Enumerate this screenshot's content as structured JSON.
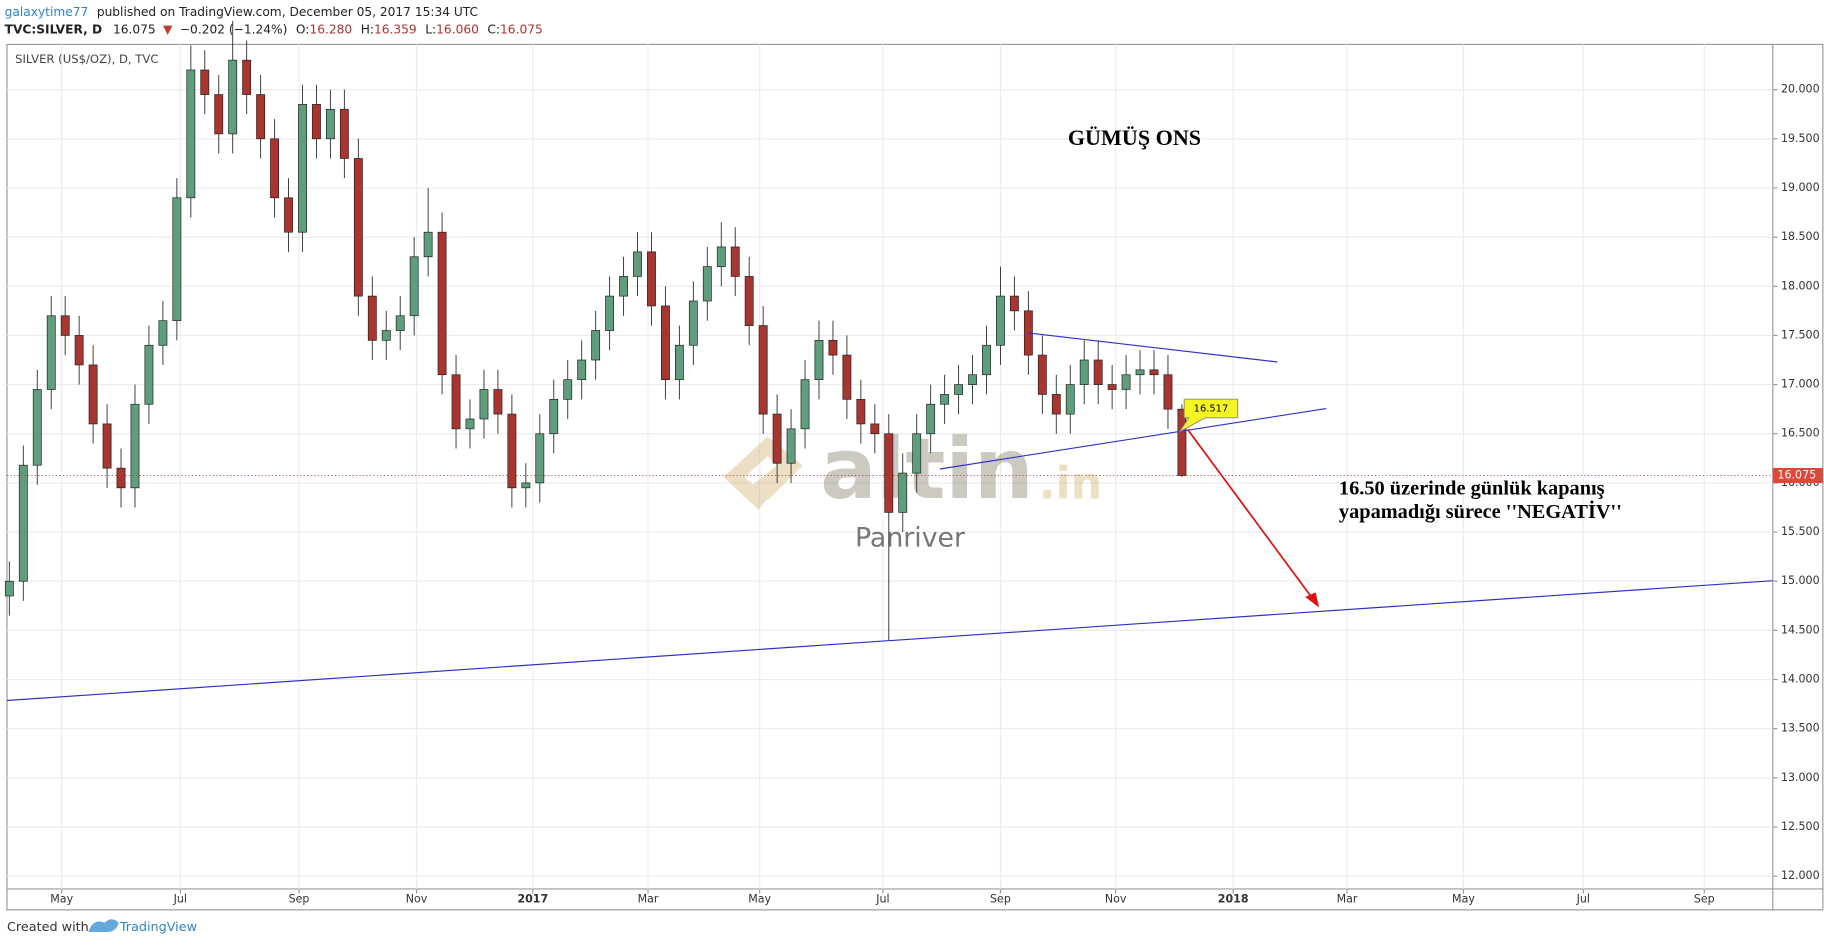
{
  "header": {
    "author": "galaxytime77",
    "published": "published on TradingView.com, December 05, 2017 15:34 UTC",
    "symbol": "TVC:SILVER, D",
    "last": "16.075",
    "arrow": "▼",
    "change": "−0.202 (−1.24%)",
    "o_label": "O:",
    "o": "16.280",
    "h_label": "H:",
    "h": "16.359",
    "l_label": "L:",
    "l": "16.060",
    "c_label": "C:",
    "c": "16.075"
  },
  "chart_data": {
    "type": "candlestick",
    "title": "GÜMÜŞ ONS",
    "subtitle": "SILVER (US$/OZ), D, TVC",
    "annotations": [
      "16.50 üzerinde günlük kapanış",
      "yapamadığı sürece ''NEGATİV''"
    ],
    "price_label": "16.517",
    "watermark": [
      "altin",
      ".in",
      "Panriver"
    ],
    "up_color": "#5f9e7c",
    "down_color": "#a8352f",
    "grid": true,
    "categories": [
      null,
      null,
      null,
      null,
      null,
      null,
      null,
      null,
      null,
      null,
      null,
      null,
      null,
      null,
      null,
      null,
      null,
      null,
      null,
      null,
      null,
      null,
      null,
      null,
      null,
      null,
      null,
      null,
      null,
      null,
      null,
      null,
      null,
      null,
      null,
      null,
      null,
      null,
      null,
      null,
      null,
      null,
      null,
      null,
      null,
      null,
      null,
      null,
      null,
      null,
      null,
      null,
      null,
      null,
      null,
      null,
      null,
      null,
      null,
      null,
      null,
      null,
      null,
      null,
      null,
      null,
      null,
      null,
      null,
      null,
      null,
      null,
      null,
      null,
      null,
      null,
      null,
      null,
      null,
      null,
      null,
      null,
      null,
      null,
      null
    ],
    "open": [
      14.85,
      15.0,
      16.18,
      16.95,
      17.7,
      17.5,
      17.2,
      16.6,
      16.15,
      15.95,
      16.8,
      17.4,
      17.65,
      18.9,
      20.2,
      19.95,
      19.55,
      20.3,
      19.95,
      19.5,
      18.9,
      18.55,
      19.85,
      19.5,
      19.8,
      19.3,
      17.9,
      17.45,
      17.55,
      17.7,
      18.3,
      18.55,
      17.1,
      16.55,
      16.65,
      16.95,
      16.7,
      15.95,
      16.0,
      16.5,
      16.85,
      17.05,
      17.25,
      17.55,
      17.9,
      18.1,
      18.35,
      17.8,
      17.05,
      17.4,
      17.85,
      18.2,
      18.4,
      18.1,
      17.6,
      16.7,
      16.2,
      16.55,
      17.05,
      17.45,
      17.3,
      16.85,
      16.6,
      16.5,
      15.7,
      16.1,
      16.5,
      16.8,
      16.9,
      17.0,
      17.1,
      17.4,
      17.9,
      17.75,
      17.3,
      16.9,
      16.7,
      17.0,
      17.25,
      17.0,
      16.95,
      17.1,
      17.15,
      17.1,
      16.75
    ],
    "high": [
      15.2,
      16.38,
      17.15,
      17.9,
      17.9,
      17.7,
      17.4,
      16.8,
      16.35,
      17.0,
      17.6,
      17.85,
      19.1,
      20.45,
      20.4,
      20.15,
      20.7,
      20.5,
      20.15,
      19.7,
      19.1,
      20.05,
      20.05,
      20.0,
      20.0,
      19.5,
      18.1,
      17.75,
      17.9,
      18.5,
      19.0,
      18.75,
      17.3,
      16.85,
      17.15,
      17.15,
      16.9,
      16.2,
      16.7,
      17.05,
      17.25,
      17.45,
      17.75,
      18.1,
      18.3,
      18.55,
      18.55,
      18.0,
      17.6,
      18.05,
      18.4,
      18.65,
      18.6,
      18.3,
      17.8,
      16.9,
      16.75,
      17.25,
      17.65,
      17.65,
      17.5,
      17.05,
      16.8,
      16.7,
      16.3,
      16.7,
      17.0,
      17.1,
      17.2,
      17.3,
      17.6,
      18.2,
      18.1,
      17.95,
      17.5,
      17.1,
      17.2,
      17.45,
      17.45,
      17.2,
      17.3,
      17.35,
      17.35,
      17.3,
      16.8
    ],
    "low": [
      14.65,
      14.8,
      15.98,
      16.75,
      17.3,
      17.0,
      16.4,
      15.95,
      15.75,
      15.75,
      16.6,
      17.2,
      17.45,
      18.7,
      19.75,
      19.35,
      19.35,
      19.75,
      19.3,
      18.7,
      18.35,
      18.35,
      19.3,
      19.3,
      19.1,
      17.7,
      17.25,
      17.25,
      17.35,
      17.5,
      18.1,
      16.9,
      16.35,
      16.35,
      16.45,
      16.5,
      15.75,
      15.75,
      15.8,
      16.3,
      16.65,
      16.85,
      17.05,
      17.35,
      17.7,
      17.9,
      17.6,
      16.85,
      16.85,
      17.2,
      17.65,
      18.0,
      17.9,
      17.4,
      16.5,
      16.0,
      16.0,
      16.35,
      16.85,
      17.1,
      16.65,
      16.4,
      16.3,
      14.4,
      15.5,
      15.9,
      16.3,
      16.6,
      16.7,
      16.8,
      16.9,
      17.2,
      17.55,
      17.1,
      16.7,
      16.5,
      16.5,
      16.8,
      16.8,
      16.75,
      16.75,
      16.9,
      16.9,
      16.55,
      16.06
    ],
    "close": [
      15.0,
      16.18,
      16.95,
      17.7,
      17.5,
      17.2,
      16.6,
      16.15,
      15.95,
      16.8,
      17.4,
      17.65,
      18.9,
      20.2,
      19.95,
      19.55,
      20.3,
      19.95,
      19.5,
      18.9,
      18.55,
      19.85,
      19.5,
      19.8,
      19.3,
      17.9,
      17.45,
      17.55,
      17.7,
      18.3,
      18.55,
      17.1,
      16.55,
      16.65,
      16.95,
      16.7,
      15.95,
      16.0,
      16.5,
      16.85,
      17.05,
      17.25,
      17.55,
      17.9,
      18.1,
      18.35,
      17.8,
      17.05,
      17.4,
      17.85,
      18.2,
      18.4,
      18.1,
      17.6,
      16.7,
      16.2,
      16.55,
      17.05,
      17.45,
      17.3,
      16.85,
      16.6,
      16.5,
      15.7,
      16.1,
      16.5,
      16.8,
      16.9,
      17.0,
      17.1,
      17.4,
      17.9,
      17.75,
      17.3,
      16.9,
      16.7,
      17.0,
      17.25,
      17.0,
      16.95,
      17.1,
      17.15,
      17.1,
      16.75,
      16.075
    ],
    "xlim": [
      -0.17,
      126.33
    ],
    "xticks": [
      {
        "value": 3.75,
        "label": "May"
      },
      {
        "value": 12.25,
        "label": "Jul"
      },
      {
        "value": 20.75,
        "label": "Sep"
      },
      {
        "value": 29.17,
        "label": "Nov"
      },
      {
        "value": 37.5,
        "label": "2017"
      },
      {
        "value": 45.75,
        "label": "Mar"
      },
      {
        "value": 53.75,
        "label": "May"
      },
      {
        "value": 62.58,
        "label": "Jul"
      },
      {
        "value": 71,
        "label": "Sep"
      },
      {
        "value": 79.25,
        "label": "Nov"
      },
      {
        "value": 87.67,
        "label": "2018"
      },
      {
        "value": 95.83,
        "label": "Mar"
      },
      {
        "value": 104.17,
        "label": "May"
      },
      {
        "value": 112.75,
        "label": "Jul"
      },
      {
        "value": 121.42,
        "label": "Sep"
      }
    ],
    "ylim": [
      11.87,
      20.46
    ],
    "yticks": [
      {
        "value": 12,
        "label": "12.000"
      },
      {
        "value": 12.5,
        "label": "12.500"
      },
      {
        "value": 13,
        "label": "13.000"
      },
      {
        "value": 13.5,
        "label": "13.500"
      },
      {
        "value": 14,
        "label": "14.000"
      },
      {
        "value": 14.5,
        "label": "14.500"
      },
      {
        "value": 15,
        "label": "15.000"
      },
      {
        "value": 15.5,
        "label": "15.500"
      },
      {
        "value": 16,
        "label": "16.000"
      },
      {
        "value": 16.5,
        "label": "16.500"
      },
      {
        "value": 17,
        "label": "17.000"
      },
      {
        "value": 17.5,
        "label": "17.500"
      },
      {
        "value": 18,
        "label": "18.000"
      },
      {
        "value": 18.5,
        "label": "18.500"
      },
      {
        "value": 19,
        "label": "19.000"
      },
      {
        "value": 19.5,
        "label": "19.500"
      },
      {
        "value": 20,
        "label": "20.000"
      }
    ]
  },
  "footer": {
    "created": "Created with",
    "brand": "TradingView"
  }
}
